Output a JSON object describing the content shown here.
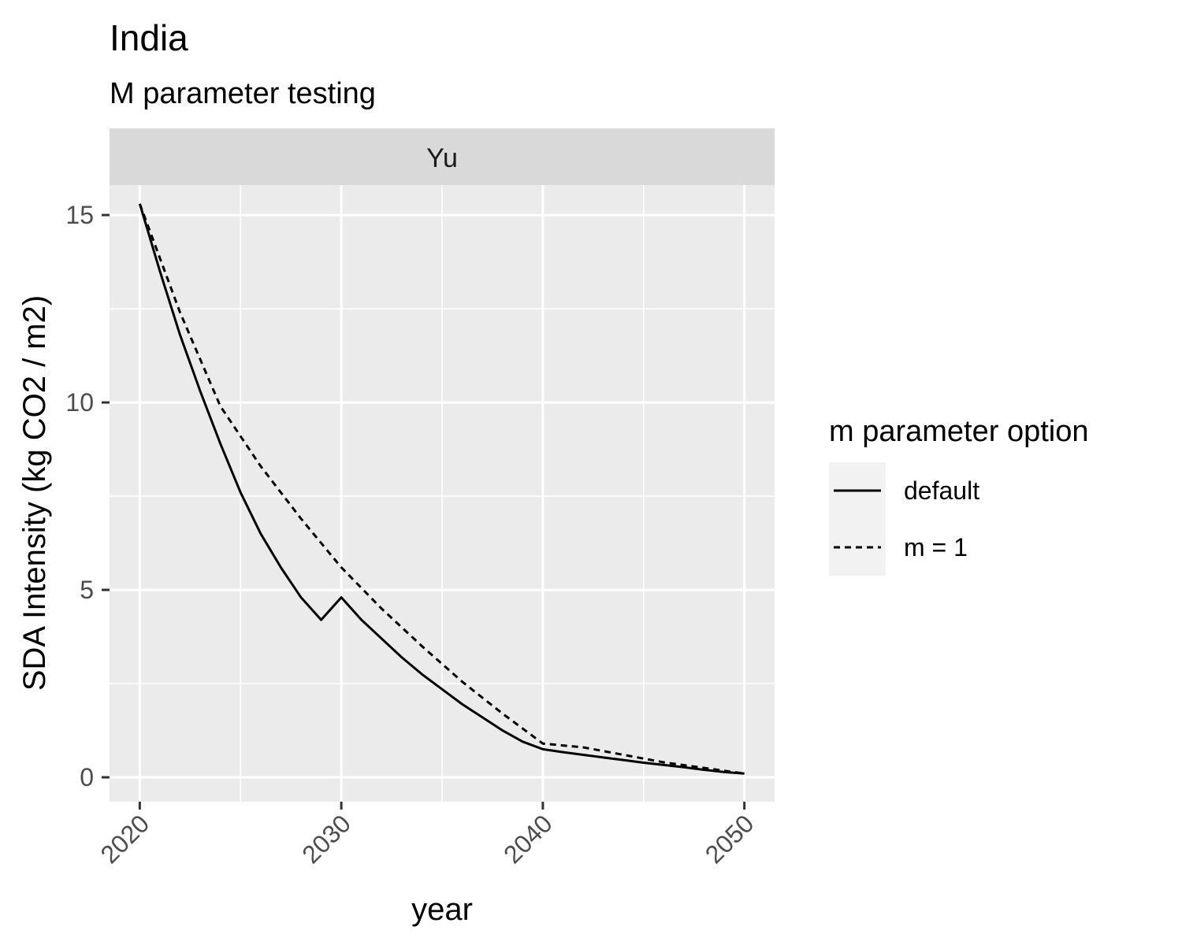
{
  "chart_data": {
    "type": "line",
    "title": "India",
    "subtitle": "M parameter testing",
    "facet": "Yu",
    "xlabel": "year",
    "ylabel": "SDA Intensity (kg CO2 / m2)",
    "xlim": [
      2018.5,
      2051.5
    ],
    "ylim": [
      -0.65,
      15.8
    ],
    "x_ticks": [
      2020,
      2030,
      2040,
      2050
    ],
    "y_ticks": [
      0,
      5,
      10,
      15
    ],
    "x_minor": [
      2025,
      2035,
      2045
    ],
    "y_minor": [
      2.5,
      7.5,
      12.5
    ],
    "grid": true,
    "legend": {
      "title": "m parameter option",
      "position": "right"
    },
    "series": [
      {
        "name": "default",
        "linetype": "solid",
        "color": "#000000",
        "x": [
          2020,
          2021,
          2022,
          2023,
          2024,
          2025,
          2026,
          2027,
          2028,
          2029,
          2030,
          2031,
          2032,
          2033,
          2034,
          2035,
          2036,
          2037,
          2038,
          2039,
          2040,
          2041,
          2042,
          2043,
          2044,
          2045,
          2046,
          2047,
          2048,
          2049,
          2050
        ],
        "values": [
          15.3,
          13.5,
          11.8,
          10.3,
          8.9,
          7.6,
          6.5,
          5.6,
          4.8,
          4.2,
          4.8,
          4.2,
          3.7,
          3.2,
          2.75,
          2.35,
          1.95,
          1.6,
          1.25,
          0.95,
          0.75,
          0.67,
          0.6,
          0.53,
          0.46,
          0.39,
          0.33,
          0.27,
          0.2,
          0.14,
          0.1
        ]
      },
      {
        "name": "m = 1",
        "linetype": "dashed",
        "color": "#000000",
        "x": [
          2020,
          2022,
          2024,
          2026,
          2028,
          2030,
          2032,
          2034,
          2036,
          2038,
          2040,
          2042,
          2044,
          2046,
          2048,
          2050
        ],
        "values": [
          15.3,
          12.4,
          9.9,
          8.3,
          6.9,
          5.6,
          4.5,
          3.5,
          2.55,
          1.7,
          0.9,
          0.8,
          0.6,
          0.4,
          0.25,
          0.1
        ]
      }
    ]
  }
}
